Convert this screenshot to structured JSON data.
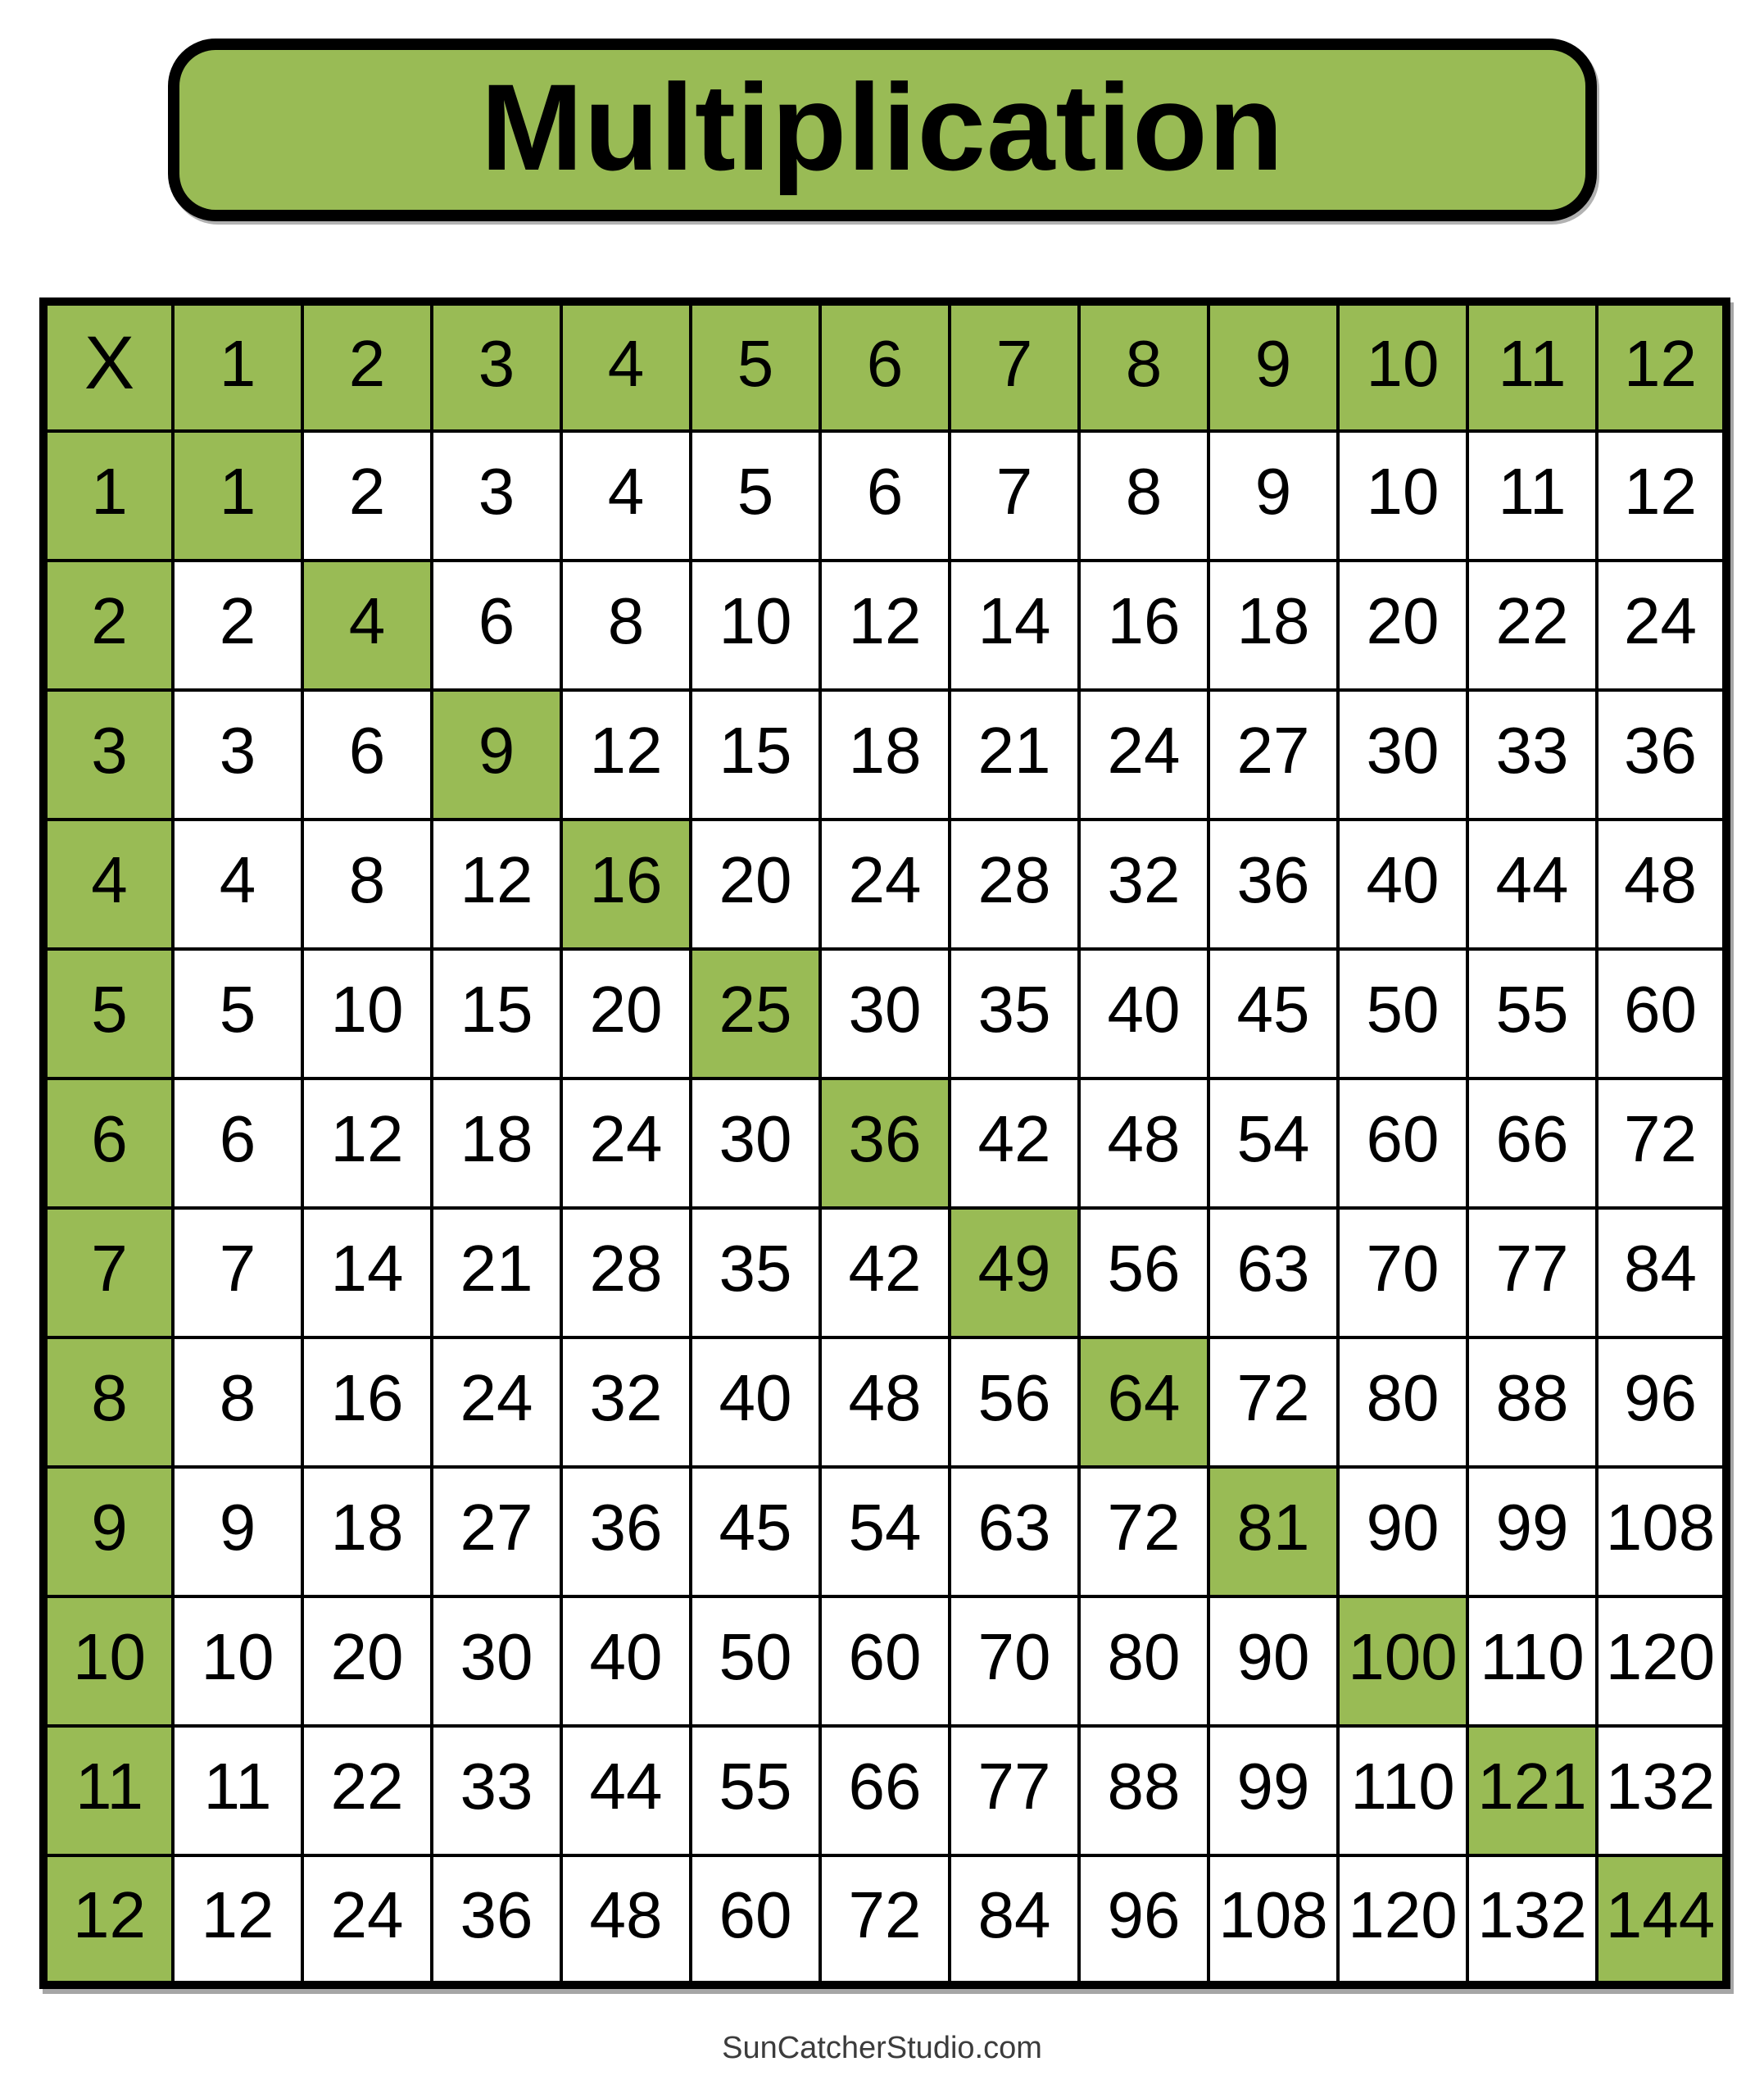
{
  "title": "Multiplication",
  "footer": "SunCatcherStudio.com",
  "colors": {
    "accent_green": "#99BB55",
    "grid_line": "#000000",
    "cell_background": "#ffffff",
    "footer_text": "#3c3c3c"
  },
  "table": {
    "corner_label": "X",
    "col_headers": [
      "1",
      "2",
      "3",
      "4",
      "5",
      "6",
      "7",
      "8",
      "9",
      "10",
      "11",
      "12"
    ],
    "row_headers": [
      "1",
      "2",
      "3",
      "4",
      "5",
      "6",
      "7",
      "8",
      "9",
      "10",
      "11",
      "12"
    ],
    "rows": [
      [
        1,
        2,
        3,
        4,
        5,
        6,
        7,
        8,
        9,
        10,
        11,
        12
      ],
      [
        2,
        4,
        6,
        8,
        10,
        12,
        14,
        16,
        18,
        20,
        22,
        24
      ],
      [
        3,
        6,
        9,
        12,
        15,
        18,
        21,
        24,
        27,
        30,
        33,
        36
      ],
      [
        4,
        8,
        12,
        16,
        20,
        24,
        28,
        32,
        36,
        40,
        44,
        48
      ],
      [
        5,
        10,
        15,
        20,
        25,
        30,
        35,
        40,
        45,
        50,
        55,
        60
      ],
      [
        6,
        12,
        18,
        24,
        30,
        36,
        42,
        48,
        54,
        60,
        66,
        72
      ],
      [
        7,
        14,
        21,
        28,
        35,
        42,
        49,
        56,
        63,
        70,
        77,
        84
      ],
      [
        8,
        16,
        24,
        32,
        40,
        48,
        56,
        64,
        72,
        80,
        88,
        96
      ],
      [
        9,
        18,
        27,
        36,
        45,
        54,
        63,
        72,
        81,
        90,
        99,
        108
      ],
      [
        10,
        20,
        30,
        40,
        50,
        60,
        70,
        80,
        90,
        100,
        110,
        120
      ],
      [
        11,
        22,
        33,
        44,
        55,
        66,
        77,
        88,
        99,
        110,
        121,
        132
      ],
      [
        12,
        24,
        36,
        48,
        60,
        72,
        84,
        96,
        108,
        120,
        132,
        144
      ]
    ],
    "highlight_rule": "header row, header column and perfect-square diagonal are green"
  }
}
